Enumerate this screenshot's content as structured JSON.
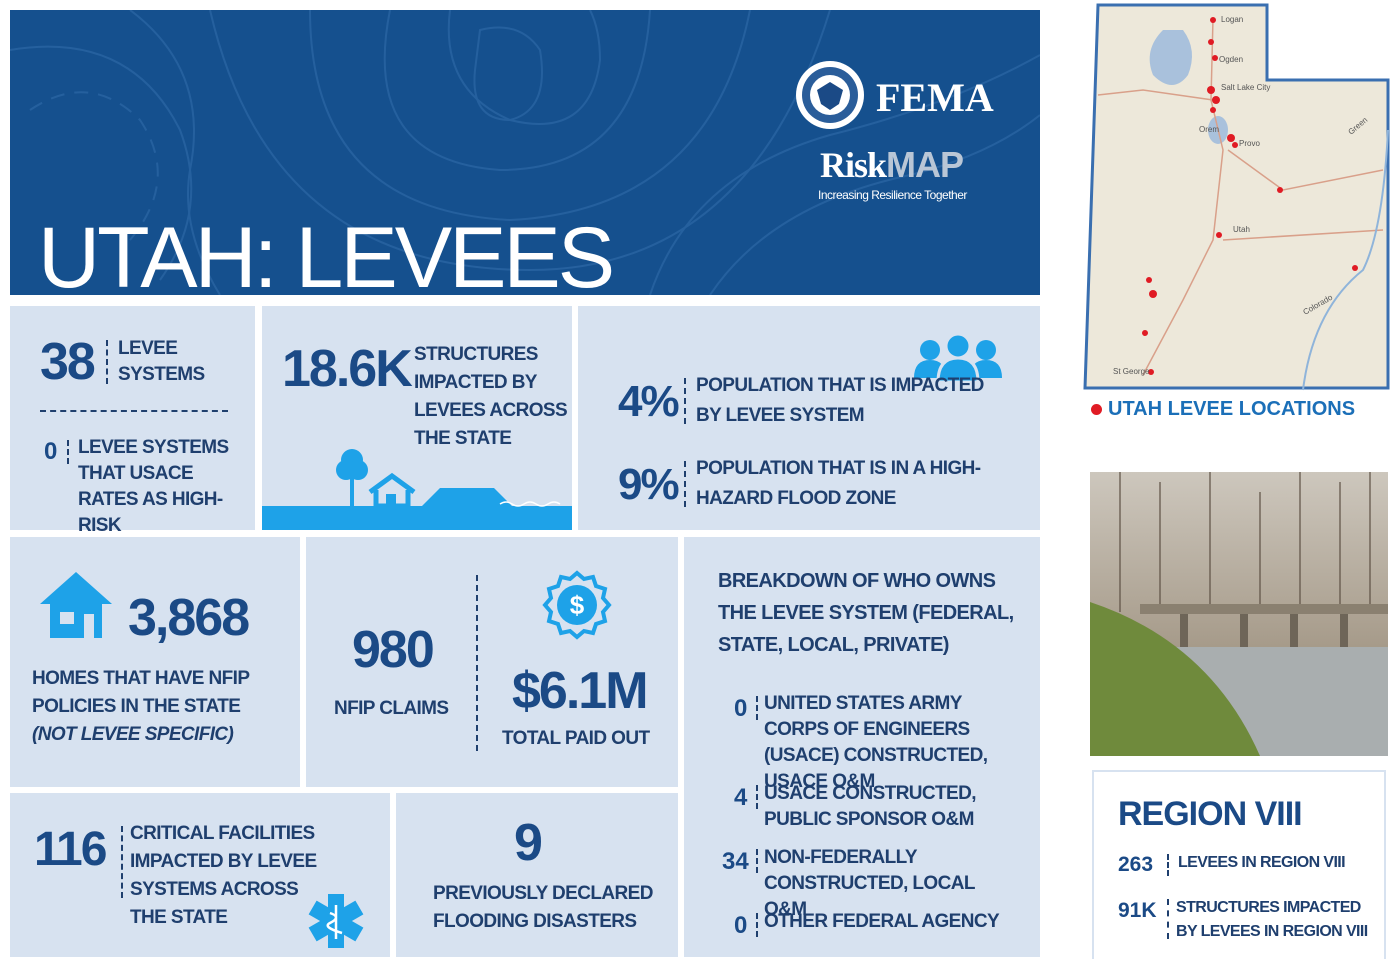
{
  "header": {
    "title": "UTAH: LEVEES",
    "agency": "FEMA",
    "program_prefix": "Risk",
    "program_suffix": "MAP",
    "tagline": "Increasing Resilience Together"
  },
  "levee_systems": {
    "value": "38",
    "label": "LEVEE SYSTEMS",
    "high_risk_value": "0",
    "high_risk_label": "LEVEE SYSTEMS THAT USACE RATES AS HIGH-RISK"
  },
  "structures": {
    "value": "18.6K",
    "label": "STRUCTURES IMPACTED BY LEVEES ACROSS THE STATE"
  },
  "population": [
    {
      "value": "4%",
      "label": "POPULATION THAT IS IMPACTED BY LEVEE SYSTEM"
    },
    {
      "value": "9%",
      "label": "POPULATION THAT IS IN A HIGH-HAZARD FLOOD ZONE"
    }
  ],
  "homes": {
    "value": "3,868",
    "label": "HOMES THAT HAVE NFIP POLICIES IN THE STATE",
    "note": "(NOT LEVEE SPECIFIC)"
  },
  "claims": {
    "value": "980",
    "label": "NFIP CLAIMS"
  },
  "paid": {
    "value": "$6.1M",
    "label": "TOTAL PAID OUT"
  },
  "ownership": {
    "title": "BREAKDOWN OF WHO OWNS THE LEVEE SYSTEM (FEDERAL, STATE, LOCAL, PRIVATE)",
    "rows": [
      {
        "value": "0",
        "label": "UNITED STATES ARMY CORPS OF ENGINEERS (USACE) CONSTRUCTED, USACE O&M"
      },
      {
        "value": "4",
        "label": "USACE CONSTRUCTED, PUBLIC SPONSOR O&M"
      },
      {
        "value": "34",
        "label": "NON-FEDERALLY CONSTRUCTED, LOCAL O&M"
      },
      {
        "value": "0",
        "label": "OTHER FEDERAL AGENCY"
      }
    ]
  },
  "critical_facilities": {
    "value": "116",
    "label": "CRITICAL FACILITIES IMPACTED BY LEVEE SYSTEMS ACROSS THE STATE"
  },
  "disasters": {
    "value": "9",
    "label": "PREVIOUSLY DECLARED FLOODING DISASTERS"
  },
  "map": {
    "caption": "UTAH LEVEE LOCATIONS",
    "labels": [
      "Logan",
      "Ogden",
      "Salt Lake City",
      "Orem",
      "Provo",
      "Utah",
      "Green",
      "Colorado",
      "St George"
    ]
  },
  "region": {
    "title": "REGION VIII",
    "rows": [
      {
        "value": "263",
        "label": "LEVEES IN REGION VIII"
      },
      {
        "value": "91K",
        "label": "STRUCTURES IMPACTED BY LEVEES IN REGION VIII"
      }
    ]
  }
}
